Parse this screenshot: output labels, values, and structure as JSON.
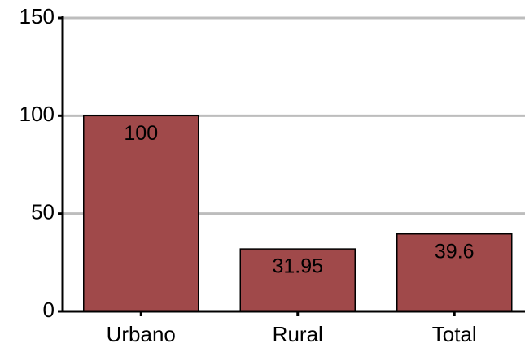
{
  "chart_data": {
    "type": "bar",
    "categories": [
      "Urbano",
      "Rural",
      "Total"
    ],
    "values": [
      100,
      31.95,
      39.6
    ],
    "color": "#a0494a",
    "ylim": [
      0,
      150
    ],
    "yticks": [
      0,
      50,
      100,
      150
    ],
    "grid": true
  }
}
